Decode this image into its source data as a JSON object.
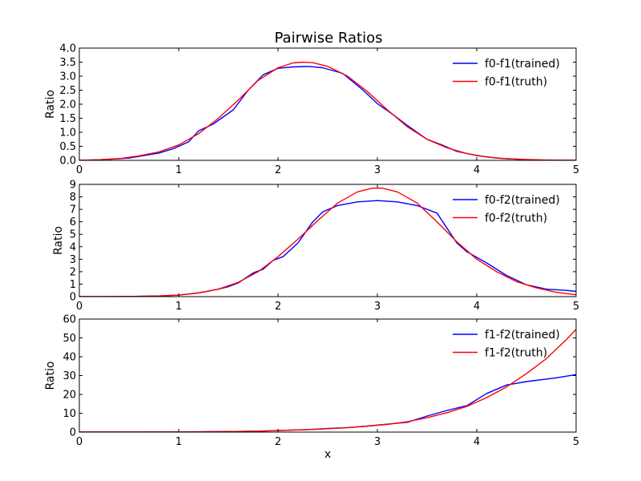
{
  "title": "Pairwise Ratios",
  "colors": {
    "trained": "#0000ff",
    "truth": "#ff0000"
  },
  "chart_data": [
    {
      "type": "line",
      "title": "Pairwise Ratios",
      "xlabel": "",
      "ylabel": "Ratio",
      "xlim": [
        0,
        5
      ],
      "ylim": [
        0,
        4
      ],
      "xticks": [
        "0",
        "1",
        "2",
        "3",
        "4",
        "5"
      ],
      "yticks": [
        "0.0",
        "0.5",
        "1.0",
        "1.5",
        "2.0",
        "2.5",
        "3.0",
        "3.5",
        "4.0"
      ],
      "grid": false,
      "legend": "top-right",
      "series": [
        {
          "name": "f0-f1(trained)",
          "color": "#0000ff",
          "x": [
            0.0,
            0.2,
            0.5,
            0.8,
            0.95,
            1.1,
            1.2,
            1.35,
            1.55,
            1.7,
            1.85,
            2.0,
            2.15,
            2.3,
            2.45,
            2.65,
            2.85,
            3.0,
            3.15,
            3.3,
            3.5,
            3.65,
            3.8,
            4.0,
            4.2,
            4.5,
            4.7,
            5.0
          ],
          "y": [
            0.0,
            0.02,
            0.08,
            0.26,
            0.42,
            0.66,
            1.05,
            1.3,
            1.8,
            2.5,
            3.05,
            3.28,
            3.33,
            3.35,
            3.3,
            3.1,
            2.52,
            2.02,
            1.65,
            1.25,
            0.75,
            0.55,
            0.32,
            0.17,
            0.08,
            0.02,
            0.01,
            0.0
          ]
        },
        {
          "name": "f0-f1(truth)",
          "color": "#ff0000",
          "x": [
            0.0,
            0.2,
            0.4,
            0.6,
            0.8,
            1.0,
            1.2,
            1.4,
            1.6,
            1.8,
            2.0,
            2.15,
            2.25,
            2.35,
            2.5,
            2.7,
            2.9,
            3.1,
            3.3,
            3.5,
            3.7,
            3.9,
            4.1,
            4.3,
            4.5,
            4.7,
            5.0
          ],
          "y": [
            0.0,
            0.02,
            0.06,
            0.16,
            0.3,
            0.55,
            0.95,
            1.5,
            2.15,
            2.85,
            3.3,
            3.47,
            3.5,
            3.48,
            3.35,
            3.0,
            2.45,
            1.8,
            1.2,
            0.75,
            0.45,
            0.24,
            0.12,
            0.06,
            0.03,
            0.01,
            0.0
          ]
        }
      ]
    },
    {
      "type": "line",
      "title": "",
      "xlabel": "",
      "ylabel": "Ratio",
      "xlim": [
        0,
        5
      ],
      "ylim": [
        0,
        9
      ],
      "xticks": [
        "0",
        "1",
        "2",
        "3",
        "4",
        "5"
      ],
      "yticks": [
        "0",
        "1",
        "2",
        "3",
        "4",
        "5",
        "6",
        "7",
        "8",
        "9"
      ],
      "grid": false,
      "legend": "top-right",
      "series": [
        {
          "name": "f0-f2(trained)",
          "color": "#0000ff",
          "x": [
            0.0,
            0.5,
            0.8,
            1.0,
            1.2,
            1.4,
            1.5,
            1.6,
            1.75,
            1.85,
            1.95,
            2.05,
            2.2,
            2.35,
            2.45,
            2.6,
            2.8,
            3.0,
            3.2,
            3.4,
            3.6,
            3.8,
            3.9,
            4.1,
            4.3,
            4.5,
            4.7,
            4.9,
            5.0
          ],
          "y": [
            0.0,
            0.01,
            0.05,
            0.12,
            0.3,
            0.6,
            0.8,
            1.1,
            1.9,
            2.2,
            2.9,
            3.2,
            4.3,
            6.0,
            6.8,
            7.3,
            7.6,
            7.7,
            7.6,
            7.3,
            6.7,
            4.3,
            3.6,
            2.7,
            1.7,
            0.95,
            0.6,
            0.5,
            0.42
          ]
        },
        {
          "name": "f0-f2(truth)",
          "color": "#ff0000",
          "x": [
            0.0,
            0.5,
            0.8,
            1.0,
            1.2,
            1.4,
            1.6,
            1.8,
            2.0,
            2.2,
            2.4,
            2.6,
            2.8,
            2.95,
            3.05,
            3.2,
            3.4,
            3.6,
            3.8,
            4.0,
            4.2,
            4.4,
            4.6,
            4.8,
            5.0
          ],
          "y": [
            0.0,
            0.01,
            0.05,
            0.12,
            0.28,
            0.6,
            1.15,
            2.0,
            3.2,
            4.6,
            6.1,
            7.5,
            8.4,
            8.7,
            8.7,
            8.4,
            7.5,
            6.0,
            4.4,
            3.0,
            2.0,
            1.2,
            0.7,
            0.35,
            0.15
          ]
        }
      ]
    },
    {
      "type": "line",
      "title": "",
      "xlabel": "x",
      "ylabel": "Ratio",
      "xlim": [
        0,
        5
      ],
      "ylim": [
        0,
        60
      ],
      "xticks": [
        "0",
        "1",
        "2",
        "3",
        "4",
        "5"
      ],
      "yticks": [
        "0",
        "10",
        "20",
        "30",
        "40",
        "50",
        "60"
      ],
      "grid": false,
      "legend": "top-right",
      "series": [
        {
          "name": "f1-f2(trained)",
          "color": "#0000ff",
          "x": [
            0.0,
            1.0,
            1.5,
            1.8,
            2.0,
            2.3,
            2.5,
            2.7,
            2.9,
            3.1,
            3.3,
            3.5,
            3.7,
            3.9,
            4.1,
            4.3,
            4.5,
            4.8,
            5.0
          ],
          "y": [
            0.0,
            0.1,
            0.3,
            0.5,
            0.8,
            1.3,
            1.9,
            2.4,
            3.2,
            4.2,
            5.2,
            8.5,
            11.5,
            14.0,
            20.5,
            25.0,
            26.8,
            28.8,
            30.5
          ]
        },
        {
          "name": "f1-f2(truth)",
          "color": "#ff0000",
          "x": [
            0.0,
            1.0,
            1.5,
            1.8,
            2.0,
            2.3,
            2.5,
            2.7,
            2.9,
            3.1,
            3.3,
            3.5,
            3.7,
            3.9,
            4.1,
            4.3,
            4.5,
            4.7,
            4.9,
            5.0
          ],
          "y": [
            0.0,
            0.1,
            0.3,
            0.5,
            0.8,
            1.3,
            1.8,
            2.4,
            3.2,
            4.1,
            5.5,
            7.6,
            10.3,
            13.6,
            18.3,
            24.0,
            31.0,
            39.0,
            49.0,
            54.5
          ]
        }
      ]
    }
  ]
}
